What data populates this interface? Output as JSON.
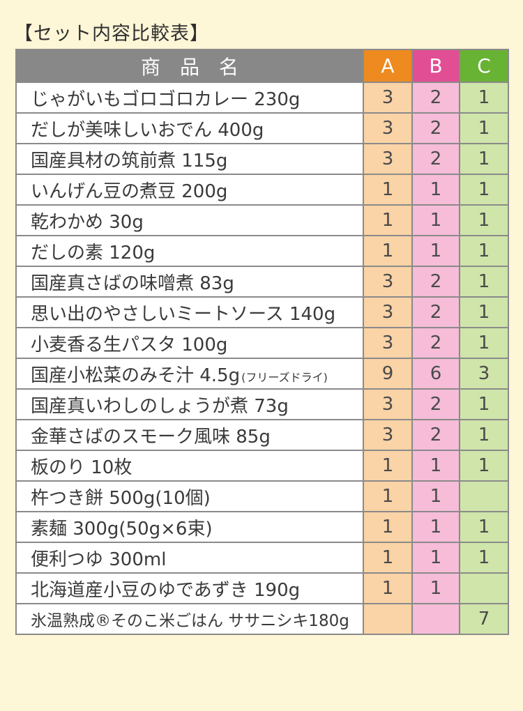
{
  "title": "【セット内容比較表】",
  "headers": {
    "name": "商品名",
    "a": "A",
    "b": "B",
    "c": "C"
  },
  "colors": {
    "a": "#ee8a1f",
    "b": "#e24e94",
    "c": "#68b234",
    "header_gray": "#888888"
  },
  "rows": [
    {
      "name": "じゃがいもゴロゴロカレー 230g",
      "note": "",
      "a": "3",
      "b": "2",
      "c": "1"
    },
    {
      "name": "だしが美味しいおでん 400g",
      "note": "",
      "a": "3",
      "b": "2",
      "c": "1"
    },
    {
      "name": "国産具材の筑前煮 115g",
      "note": "",
      "a": "3",
      "b": "2",
      "c": "1"
    },
    {
      "name": "いんげん豆の煮豆 200g",
      "note": "",
      "a": "1",
      "b": "1",
      "c": "1"
    },
    {
      "name": "乾わかめ 30g",
      "note": "",
      "a": "1",
      "b": "1",
      "c": "1"
    },
    {
      "name": "だしの素 120g",
      "note": "",
      "a": "1",
      "b": "1",
      "c": "1"
    },
    {
      "name": "国産真さばの味噌煮 83g",
      "note": "",
      "a": "3",
      "b": "2",
      "c": "1"
    },
    {
      "name": "思い出のやさしいミートソース 140g",
      "note": "",
      "a": "3",
      "b": "2",
      "c": "1"
    },
    {
      "name": "小麦香る生パスタ 100g",
      "note": "",
      "a": "3",
      "b": "2",
      "c": "1"
    },
    {
      "name": "国産小松菜のみそ汁 4.5g",
      "note": "(フリーズドライ)",
      "a": "9",
      "b": "6",
      "c": "3"
    },
    {
      "name": "国産真いわしのしょうが煮 73g",
      "note": "",
      "a": "3",
      "b": "2",
      "c": "1"
    },
    {
      "name": "金華さばのスモーク風味 85g",
      "note": "",
      "a": "3",
      "b": "2",
      "c": "1"
    },
    {
      "name": "板のり 10枚",
      "note": "",
      "a": "1",
      "b": "1",
      "c": "1"
    },
    {
      "name": "杵つき餅 500g(10個)",
      "note": "",
      "a": "1",
      "b": "1",
      "c": ""
    },
    {
      "name": "素麺 300g(50g×6束)",
      "note": "",
      "a": "1",
      "b": "1",
      "c": "1"
    },
    {
      "name": "便利つゆ 300ml",
      "note": "",
      "a": "1",
      "b": "1",
      "c": "1"
    },
    {
      "name": "北海道産小豆のゆであずき 190g",
      "note": "",
      "a": "1",
      "b": "1",
      "c": ""
    },
    {
      "name": "氷温熟成®そのこ米ごはん ササニシキ180g",
      "note": "",
      "a": "",
      "b": "",
      "c": "7"
    }
  ]
}
